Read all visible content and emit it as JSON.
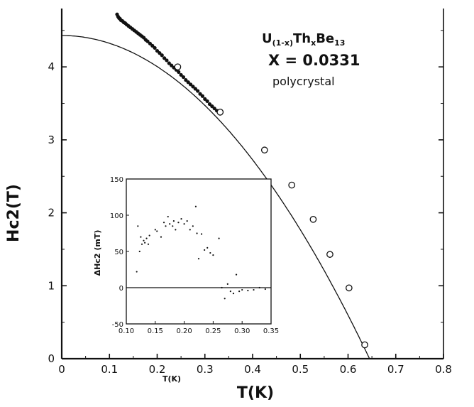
{
  "chart_data": [
    {
      "type": "scatter",
      "xlabel": "T(K)",
      "ylabel": "Hc2(T)",
      "xlim": [
        0,
        0.8
      ],
      "ylim": [
        0,
        4.8
      ],
      "xticks": [
        "0",
        "0.1",
        "0.2",
        "0.3",
        "0.4",
        "0.5",
        "0.6",
        "0.7",
        "0.8"
      ],
      "yticks": [
        "0",
        "1",
        "2",
        "3",
        "4"
      ],
      "annotation": {
        "line1_main": "U",
        "line1_sub": "(1-x)",
        "line1_mid": "Th",
        "line1_sub2": "x",
        "line1_tail": "Be",
        "line1_sub3": "13",
        "line2": "X = 0.0331",
        "line3": "polycrystal"
      },
      "series": [
        {
          "kind": "dots",
          "points": [
            [
              0.116,
              4.72
            ],
            [
              0.118,
              4.69
            ],
            [
              0.12,
              4.67
            ],
            [
              0.122,
              4.66
            ],
            [
              0.124,
              4.64
            ],
            [
              0.127,
              4.63
            ],
            [
              0.13,
              4.61
            ],
            [
              0.133,
              4.6
            ],
            [
              0.136,
              4.58
            ],
            [
              0.14,
              4.56
            ],
            [
              0.144,
              4.54
            ],
            [
              0.148,
              4.52
            ],
            [
              0.152,
              4.5
            ],
            [
              0.156,
              4.48
            ],
            [
              0.16,
              4.46
            ],
            [
              0.164,
              4.44
            ],
            [
              0.168,
              4.42
            ],
            [
              0.172,
              4.4
            ],
            [
              0.176,
              4.37
            ],
            [
              0.18,
              4.35
            ],
            [
              0.185,
              4.32
            ],
            [
              0.19,
              4.29
            ],
            [
              0.195,
              4.26
            ],
            [
              0.2,
              4.22
            ],
            [
              0.205,
              4.19
            ],
            [
              0.21,
              4.16
            ],
            [
              0.215,
              4.12
            ],
            [
              0.22,
              4.09
            ],
            [
              0.225,
              4.05
            ],
            [
              0.23,
              4.02
            ],
            [
              0.235,
              3.99
            ],
            [
              0.24,
              3.96
            ],
            [
              0.245,
              3.93
            ],
            [
              0.25,
              3.89
            ],
            [
              0.255,
              3.86
            ],
            [
              0.26,
              3.82
            ],
            [
              0.265,
              3.79
            ],
            [
              0.27,
              3.76
            ],
            [
              0.275,
              3.73
            ],
            [
              0.28,
              3.7
            ],
            [
              0.285,
              3.67
            ],
            [
              0.29,
              3.63
            ],
            [
              0.295,
              3.6
            ],
            [
              0.3,
              3.56
            ],
            [
              0.305,
              3.53
            ],
            [
              0.31,
              3.49
            ],
            [
              0.315,
              3.46
            ],
            [
              0.32,
              3.43
            ],
            [
              0.325,
              3.4
            ]
          ]
        },
        {
          "kind": "open-circles",
          "points": [
            [
              0.243,
              4.0
            ],
            [
              0.332,
              3.38
            ],
            [
              0.425,
              2.86
            ],
            [
              0.482,
              2.38
            ],
            [
              0.527,
              1.91
            ],
            [
              0.562,
              1.43
            ],
            [
              0.602,
              0.97
            ],
            [
              0.635,
              0.19
            ]
          ]
        },
        {
          "kind": "fit-curve",
          "Hc2_0": 4.43,
          "Tc": 0.645,
          "form": "H0*(1-(T/Tc)^2)"
        }
      ]
    },
    {
      "type": "scatter",
      "xlabel": "T(K)",
      "ylabel": "ΔHc2 (mT)",
      "xlim": [
        0.1,
        0.35
      ],
      "ylim": [
        -50,
        150
      ],
      "xticks": [
        "0.10",
        "0.15",
        "0.20",
        "0.25",
        "0.30",
        "0.35"
      ],
      "yticks": [
        "-50",
        "0",
        "50",
        "100",
        "150"
      ],
      "zero_line": true,
      "points": [
        [
          0.118,
          22
        ],
        [
          0.12,
          85
        ],
        [
          0.123,
          50
        ],
        [
          0.125,
          70
        ],
        [
          0.127,
          60
        ],
        [
          0.13,
          65
        ],
        [
          0.132,
          62
        ],
        [
          0.135,
          68
        ],
        [
          0.138,
          60
        ],
        [
          0.14,
          72
        ],
        [
          0.15,
          80
        ],
        [
          0.153,
          78
        ],
        [
          0.16,
          70
        ],
        [
          0.165,
          90
        ],
        [
          0.168,
          85
        ],
        [
          0.172,
          98
        ],
        [
          0.175,
          88
        ],
        [
          0.18,
          85
        ],
        [
          0.182,
          92
        ],
        [
          0.185,
          80
        ],
        [
          0.19,
          90
        ],
        [
          0.195,
          95
        ],
        [
          0.2,
          88
        ],
        [
          0.205,
          92
        ],
        [
          0.21,
          80
        ],
        [
          0.215,
          85
        ],
        [
          0.22,
          112
        ],
        [
          0.222,
          75
        ],
        [
          0.225,
          40
        ],
        [
          0.23,
          74
        ],
        [
          0.235,
          52
        ],
        [
          0.24,
          55
        ],
        [
          0.245,
          48
        ],
        [
          0.25,
          45
        ],
        [
          0.26,
          68
        ],
        [
          0.265,
          0
        ],
        [
          0.27,
          -15
        ],
        [
          0.275,
          5
        ],
        [
          0.28,
          -5
        ],
        [
          0.285,
          -8
        ],
        [
          0.29,
          18
        ],
        [
          0.295,
          -5
        ],
        [
          0.3,
          -3
        ],
        [
          0.31,
          -4
        ],
        [
          0.32,
          -3
        ],
        [
          0.33,
          0
        ],
        [
          0.34,
          -2
        ]
      ]
    }
  ]
}
